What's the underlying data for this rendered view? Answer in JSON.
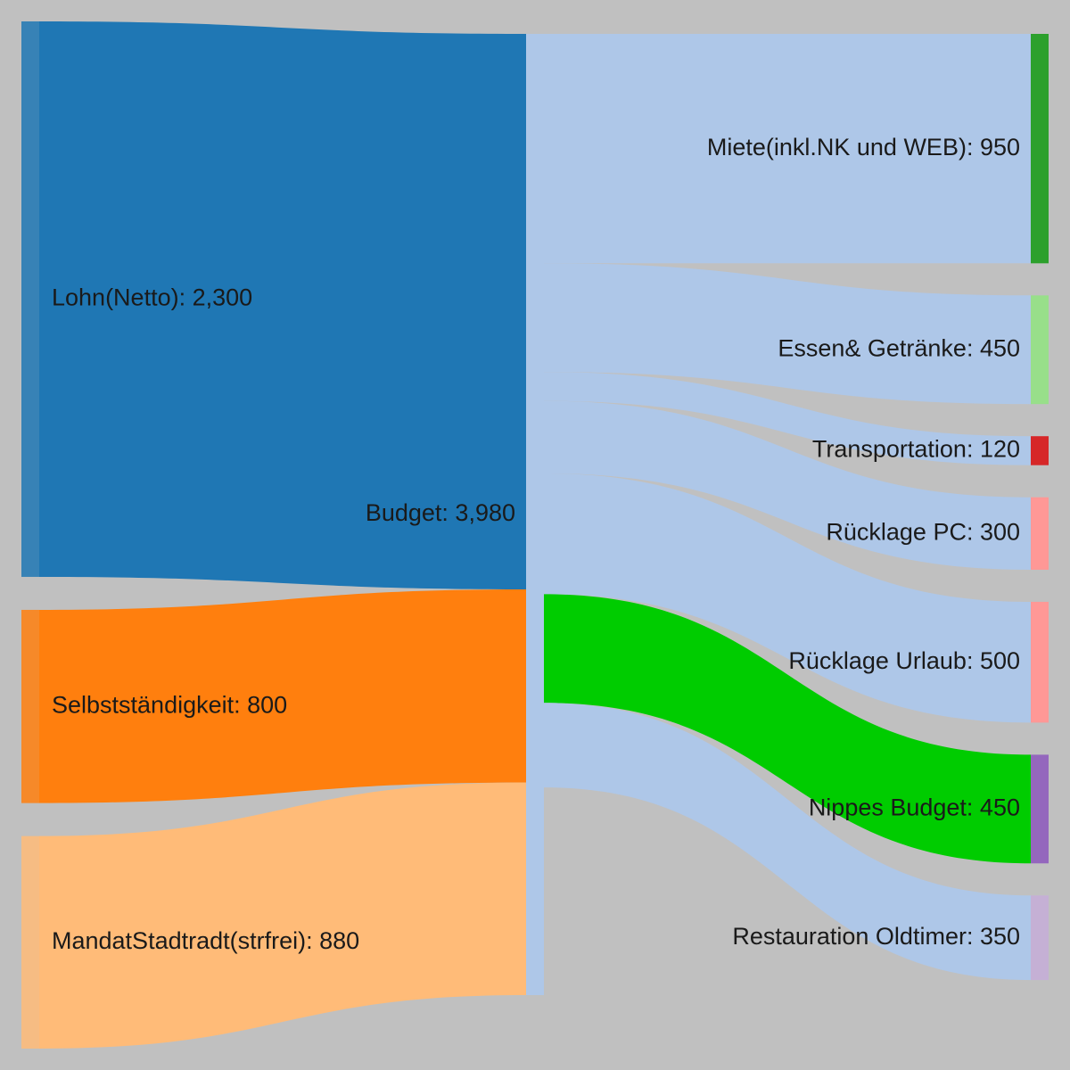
{
  "colors": {
    "background": "#c0c0c0",
    "link_default": "#aec7e8"
  },
  "chart_data": {
    "type": "sankey",
    "nodes": [
      {
        "id": "lohn",
        "name": "Lohn(Netto)",
        "value": 2300,
        "label": "Lohn(Netto): 2,300",
        "color": "#1f77b4",
        "column": 0
      },
      {
        "id": "selbst",
        "name": "Selbstständigkeit",
        "value": 800,
        "label": "Selbstständigkeit: 800",
        "color": "#ff7f0e",
        "column": 0
      },
      {
        "id": "mandat",
        "name": "MandatStadtradt(strfrei)",
        "value": 880,
        "label": "MandatStadtradt(strfrei): 880",
        "color": "#ffbb78",
        "column": 0
      },
      {
        "id": "budget",
        "name": "Budget",
        "value": 3980,
        "label": "Budget: 3,980",
        "color": "#aec7e8",
        "column": 1
      },
      {
        "id": "miete",
        "name": "Miete(inkl.NK und WEB)",
        "value": 950,
        "label": "Miete(inkl.NK und WEB): 950",
        "color": "#2ca02c",
        "column": 2
      },
      {
        "id": "essen",
        "name": "Essen& Getränke",
        "value": 450,
        "label": "Essen& Getränke: 450",
        "color": "#98df8a",
        "column": 2
      },
      {
        "id": "transport",
        "name": "Transportation",
        "value": 120,
        "label": "Transportation: 120",
        "color": "#d62728",
        "column": 2
      },
      {
        "id": "pc",
        "name": "Rücklage PC",
        "value": 300,
        "label": "Rücklage PC: 300",
        "color": "#ff9896",
        "column": 2
      },
      {
        "id": "urlaub",
        "name": "Rücklage Urlaub",
        "value": 500,
        "label": "Rücklage Urlaub: 500",
        "color": "#ff9896",
        "column": 2
      },
      {
        "id": "nippes",
        "name": "Nippes Budget",
        "value": 450,
        "label": "Nippes Budget: 450",
        "color": "#9467bd",
        "column": 2
      },
      {
        "id": "oldtimer",
        "name": "Restauration Oldtimer",
        "value": 350,
        "label": "Restauration Oldtimer: 350",
        "color": "#c5b0d5",
        "column": 2
      }
    ],
    "links": [
      {
        "source": "lohn",
        "target": "budget",
        "value": 2300,
        "color": "#1f77b4"
      },
      {
        "source": "selbst",
        "target": "budget",
        "value": 800,
        "color": "#ff7f0e"
      },
      {
        "source": "mandat",
        "target": "budget",
        "value": 880,
        "color": "#ffbb78"
      },
      {
        "source": "budget",
        "target": "miete",
        "value": 950,
        "color": "#aec7e8"
      },
      {
        "source": "budget",
        "target": "essen",
        "value": 450,
        "color": "#aec7e8"
      },
      {
        "source": "budget",
        "target": "transport",
        "value": 120,
        "color": "#aec7e8"
      },
      {
        "source": "budget",
        "target": "pc",
        "value": 300,
        "color": "#aec7e8"
      },
      {
        "source": "budget",
        "target": "urlaub",
        "value": 500,
        "color": "#aec7e8"
      },
      {
        "source": "budget",
        "target": "nippes",
        "value": 450,
        "color": "#00cc00"
      },
      {
        "source": "budget",
        "target": "oldtimer",
        "value": 350,
        "color": "#aec7e8"
      }
    ]
  }
}
